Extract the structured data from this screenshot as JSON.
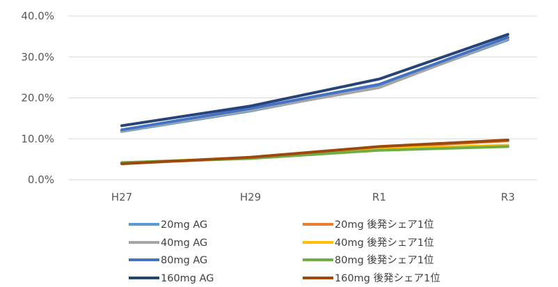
{
  "chart_data": {
    "type": "line",
    "title": "",
    "xlabel": "",
    "ylabel": "",
    "categories": [
      "H27",
      "H29",
      "R1",
      "R3"
    ],
    "ylim": [
      0,
      40
    ],
    "yticks": [
      0,
      10,
      20,
      30,
      40
    ],
    "ytick_labels": [
      "0.0%",
      "10.0%",
      "20.0%",
      "30.0%",
      "40.0%"
    ],
    "grid": true,
    "legend_position": "bottom",
    "series": [
      {
        "name": "20mg AG",
        "color": "#5b9bd5",
        "values": [
          11.8,
          16.8,
          22.8,
          34.2
        ]
      },
      {
        "name": "20mg 後発シェア1位",
        "color": "#ed7d31",
        "values": [
          4.0,
          5.3,
          7.9,
          9.5
        ]
      },
      {
        "name": "40mg AG",
        "color": "#a5a5a5",
        "values": [
          12.0,
          17.0,
          22.5,
          34.5
        ]
      },
      {
        "name": "40mg 後発シェア1位",
        "color": "#ffc000",
        "values": [
          4.1,
          5.4,
          7.6,
          8.4
        ]
      },
      {
        "name": "80mg AG",
        "color": "#4472c4",
        "values": [
          12.2,
          17.4,
          23.3,
          34.8
        ]
      },
      {
        "name": "80mg 後発シェア1位",
        "color": "#70ad47",
        "values": [
          4.2,
          5.2,
          7.2,
          8.1
        ]
      },
      {
        "name": "160mg AG",
        "color": "#264478",
        "values": [
          13.2,
          18.0,
          24.6,
          35.5
        ]
      },
      {
        "name": "160mg 後発シェア1位",
        "color": "#9e480e",
        "values": [
          3.9,
          5.5,
          8.1,
          9.7
        ]
      }
    ]
  }
}
